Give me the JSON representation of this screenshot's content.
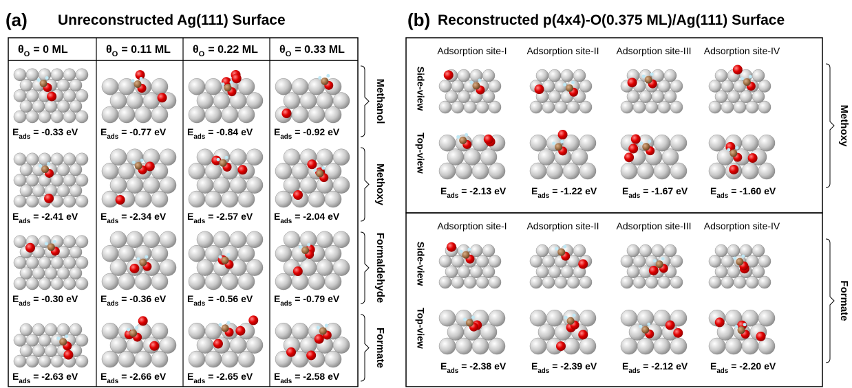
{
  "panel_a": {
    "label": "(a)",
    "title": "Unreconstructed Ag(111) Surface",
    "energy_symbol": "E",
    "energy_sub": "ads",
    "columns": [
      {
        "symbol": "θ",
        "sub": "O",
        "text": "= 0 ML"
      },
      {
        "symbol": "θ",
        "sub": "O",
        "text": "= 0.11 ML"
      },
      {
        "symbol": "θ",
        "sub": "O",
        "text": "= 0.22 ML"
      },
      {
        "symbol": "θ",
        "sub": "O",
        "text": "= 0.33 ML"
      }
    ],
    "rows": [
      {
        "label": "Methanol",
        "energies": [
          "= -0.33 eV",
          "= -0.77 eV",
          "= -0.84 eV",
          "= -0.92 eV"
        ]
      },
      {
        "label": "Methoxy",
        "energies": [
          "= -2.41 eV",
          "= -2.34 eV",
          "= -2.57 eV",
          "= -2.04 eV"
        ]
      },
      {
        "label": "Formaldehyde",
        "energies": [
          "= -0.30 eV",
          "= -0.36 eV",
          "= -0.56 eV",
          "= -0.79 eV"
        ]
      },
      {
        "label": "Formate",
        "energies": [
          "= -2.63 eV",
          "= -2.66 eV",
          "= -2.65 eV",
          "= -2.58 eV"
        ]
      }
    ]
  },
  "panel_b": {
    "label": "(b)",
    "title": "Reconstructed p(4x4)-O(0.375 ML)/Ag(111) Surface",
    "energy_symbol": "E",
    "energy_sub": "ads",
    "blocks": [
      {
        "label": "Methoxy",
        "sites": [
          "Adsorption site-I",
          "Adsorption site-II",
          "Adsorption site-III",
          "Adsorption site-IV"
        ],
        "views": [
          "Side-view",
          "Top-view"
        ],
        "energies": [
          "= -2.13 eV",
          "= -1.22 eV",
          "= -1.67 eV",
          "= -1.60 eV"
        ]
      },
      {
        "label": "Formate",
        "sites": [
          "Adsorption site-I",
          "Adsorption site-II",
          "Adsorption site-III",
          "Adsorption site-IV"
        ],
        "views": [
          "Side-view",
          "Top-view"
        ],
        "energies": [
          "= -2.38 eV",
          "= -2.39 eV",
          "= -2.12 eV",
          "= -2.20 eV"
        ]
      }
    ]
  }
}
